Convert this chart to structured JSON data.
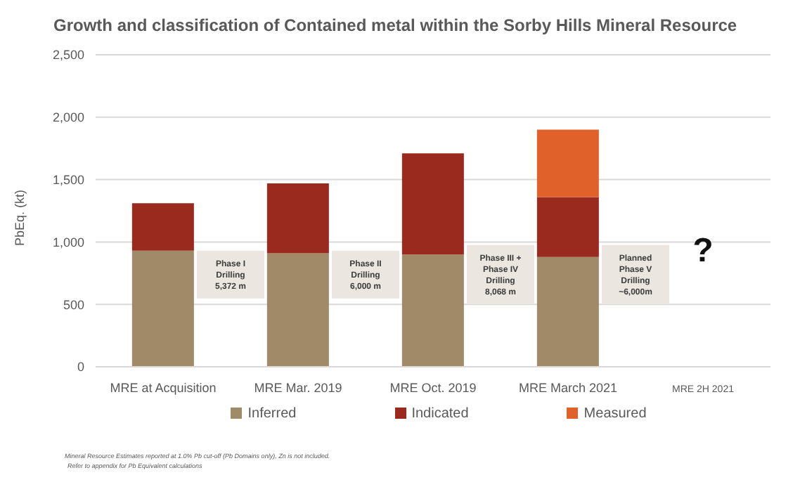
{
  "chart_data": {
    "type": "bar",
    "title": "Growth and classification of Contained metal within the Sorby Hills Mineral Resource",
    "ylabel": "PbEq. (kt)",
    "categories": [
      "MRE at Acquisition",
      "MRE Mar. 2019",
      "MRE Oct. 2019",
      "MRE March 2021",
      "MRE 2H 2021"
    ],
    "series": [
      {
        "name": "Inferred",
        "color": "#a08a68",
        "values": [
          930,
          910,
          900,
          880,
          null
        ]
      },
      {
        "name": "Indicated",
        "color": "#9a2a1e",
        "values": [
          380,
          560,
          810,
          480,
          null
        ]
      },
      {
        "name": "Measured",
        "color": "#e0622a",
        "values": [
          null,
          null,
          null,
          540,
          null
        ]
      }
    ],
    "stacked": true,
    "ylim": [
      0,
      2500
    ],
    "yticks": [
      {
        "value": 0,
        "label": "0"
      },
      {
        "value": 500,
        "label": "500"
      },
      {
        "value": 1000,
        "label": "1,000"
      },
      {
        "value": 1500,
        "label": "1,500"
      },
      {
        "value": 2000,
        "label": "2,000"
      },
      {
        "value": 2500,
        "label": "2,500"
      }
    ],
    "grid": "y",
    "legend": "bottom",
    "annotations": [
      "Phase I\nDrilling\n5,372 m",
      "Phase II\nDrilling\n6,000 m",
      "Phase III +\nPhase IV\nDrilling\n8,068 m",
      "Planned\nPhase V\nDrilling\n~6,000m",
      "?",
      "Mineral Resource Estimates reported at 1.0% Pb cut-off (Pb Domains only), Zn is not included.",
      "Refer to appendix for Pb Equivalent calculations"
    ]
  }
}
